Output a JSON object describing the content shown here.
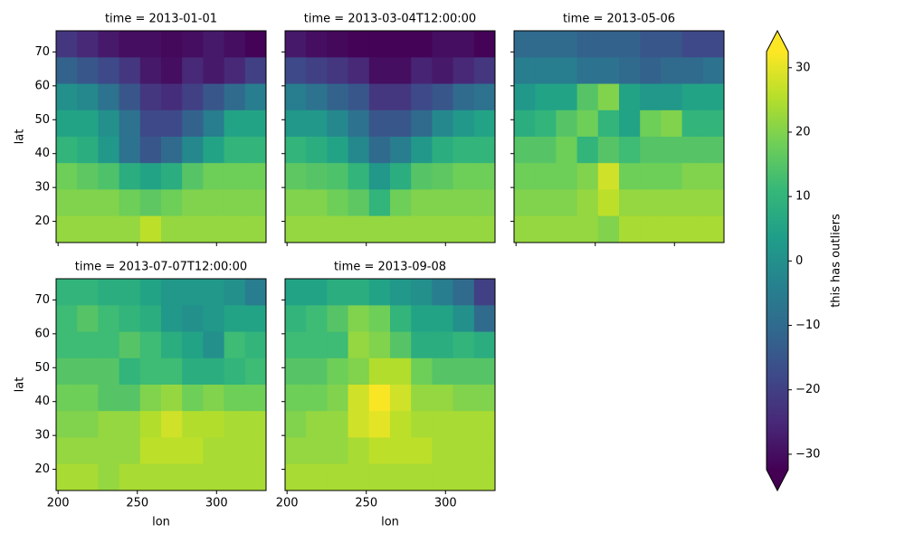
{
  "chart_data": {
    "type": "heatmap",
    "xlabel": "lon",
    "ylabel": "lat",
    "x": [
      205.4,
      218.6,
      231.9,
      245.1,
      258.4,
      271.6,
      284.9,
      298.1,
      311.4,
      324.6
    ],
    "y": [
      72.3,
      64.5,
      56.7,
      48.9,
      41.1,
      33.3,
      25.5,
      17.7
    ],
    "xlim": [
      198.75,
      331.25
    ],
    "ylim": [
      13.75,
      76.25
    ],
    "xticks": [
      200,
      250,
      300
    ],
    "yticks": [
      20,
      30,
      40,
      50,
      60,
      70
    ],
    "colormap": [
      "#440154",
      "#482878",
      "#3e4989",
      "#31688e",
      "#26828e",
      "#1f9e89",
      "#35b779",
      "#6ece58",
      "#b5de2b",
      "#fde725"
    ],
    "panels": [
      {
        "title": "time = 2013-01-01",
        "values": [
          [
            -22,
            -25,
            -28,
            -30,
            -30,
            -31,
            -30,
            -28,
            -30,
            -32
          ],
          [
            -12,
            -15,
            -18,
            -22,
            -28,
            -30,
            -25,
            -28,
            -25,
            -20
          ],
          [
            0,
            -2,
            -8,
            -15,
            -22,
            -24,
            -20,
            -15,
            -10,
            -5
          ],
          [
            5,
            5,
            0,
            -8,
            -18,
            -18,
            -12,
            -5,
            5,
            5
          ],
          [
            10,
            8,
            2,
            -8,
            -15,
            -10,
            -2,
            5,
            10,
            10
          ],
          [
            18,
            16,
            14,
            8,
            5,
            8,
            15,
            18,
            18,
            18
          ],
          [
            20,
            20,
            20,
            18,
            16,
            18,
            20,
            20,
            20,
            20
          ],
          [
            22,
            22,
            22,
            22,
            26,
            22,
            22,
            22,
            22,
            22
          ]
        ]
      },
      {
        "title": "time = 2013-03-04T12:00:00",
        "values": [
          [
            -28,
            -30,
            -31,
            -32,
            -32,
            -32,
            -32,
            -30,
            -30,
            -32
          ],
          [
            -18,
            -20,
            -22,
            -25,
            -30,
            -30,
            -26,
            -28,
            -25,
            -22
          ],
          [
            -5,
            -8,
            -12,
            -15,
            -22,
            -22,
            -18,
            -15,
            -10,
            -8
          ],
          [
            2,
            2,
            -2,
            -8,
            -15,
            -15,
            -10,
            -2,
            2,
            5
          ],
          [
            10,
            8,
            5,
            -2,
            -10,
            -5,
            2,
            8,
            10,
            10
          ],
          [
            16,
            15,
            14,
            10,
            2,
            8,
            15,
            16,
            18,
            18
          ],
          [
            20,
            20,
            18,
            16,
            10,
            18,
            20,
            20,
            20,
            20
          ],
          [
            22,
            22,
            22,
            22,
            22,
            22,
            22,
            22,
            22,
            22
          ]
        ]
      },
      {
        "title": "time = 2013-05-06",
        "values": [
          [
            -10,
            -10,
            -10,
            -12,
            -12,
            -12,
            -15,
            -15,
            -18,
            -18
          ],
          [
            -5,
            -5,
            -5,
            -8,
            -8,
            -10,
            -12,
            -10,
            -10,
            -8
          ],
          [
            2,
            5,
            5,
            15,
            20,
            5,
            2,
            2,
            5,
            5
          ],
          [
            8,
            10,
            15,
            18,
            10,
            5,
            18,
            20,
            10,
            10
          ],
          [
            15,
            15,
            18,
            10,
            15,
            12,
            15,
            15,
            15,
            15
          ],
          [
            18,
            18,
            18,
            20,
            28,
            18,
            18,
            18,
            20,
            20
          ],
          [
            20,
            20,
            20,
            22,
            26,
            22,
            22,
            22,
            22,
            22
          ],
          [
            22,
            22,
            22,
            22,
            20,
            24,
            24,
            24,
            24,
            24
          ]
        ]
      },
      {
        "title": "time = 2013-07-07T12:00:00",
        "values": [
          [
            10,
            10,
            8,
            8,
            5,
            2,
            2,
            2,
            0,
            -5
          ],
          [
            12,
            15,
            12,
            10,
            8,
            2,
            0,
            2,
            5,
            5
          ],
          [
            12,
            12,
            12,
            15,
            12,
            8,
            5,
            0,
            12,
            10
          ],
          [
            15,
            15,
            15,
            10,
            12,
            12,
            8,
            8,
            10,
            12
          ],
          [
            18,
            18,
            15,
            15,
            20,
            22,
            18,
            20,
            18,
            18
          ],
          [
            20,
            20,
            22,
            22,
            25,
            28,
            25,
            25,
            24,
            24
          ],
          [
            22,
            22,
            22,
            22,
            26,
            26,
            26,
            24,
            24,
            24
          ],
          [
            24,
            24,
            22,
            24,
            24,
            24,
            24,
            24,
            24,
            24
          ]
        ]
      },
      {
        "title": "time = 2013-09-08",
        "values": [
          [
            5,
            5,
            8,
            8,
            5,
            2,
            0,
            -5,
            -10,
            -20
          ],
          [
            10,
            12,
            15,
            20,
            18,
            10,
            5,
            5,
            0,
            -10
          ],
          [
            12,
            12,
            12,
            22,
            20,
            15,
            8,
            8,
            10,
            8
          ],
          [
            15,
            15,
            18,
            20,
            25,
            25,
            18,
            15,
            15,
            15
          ],
          [
            18,
            18,
            20,
            28,
            32,
            28,
            22,
            22,
            20,
            20
          ],
          [
            20,
            22,
            22,
            28,
            30,
            26,
            24,
            24,
            24,
            24
          ],
          [
            22,
            22,
            22,
            24,
            26,
            26,
            26,
            24,
            24,
            24
          ],
          [
            24,
            24,
            24,
            24,
            24,
            24,
            24,
            24,
            24,
            24
          ]
        ]
      }
    ],
    "colorbar": {
      "label": "this has outliers",
      "lim": [
        -32.4,
        32.5
      ],
      "extend": "both",
      "ticks": [
        {
          "value": -30,
          "label": "−30"
        },
        {
          "value": -20,
          "label": "−20"
        },
        {
          "value": -10,
          "label": "−10"
        },
        0,
        10,
        20,
        30
      ]
    }
  }
}
